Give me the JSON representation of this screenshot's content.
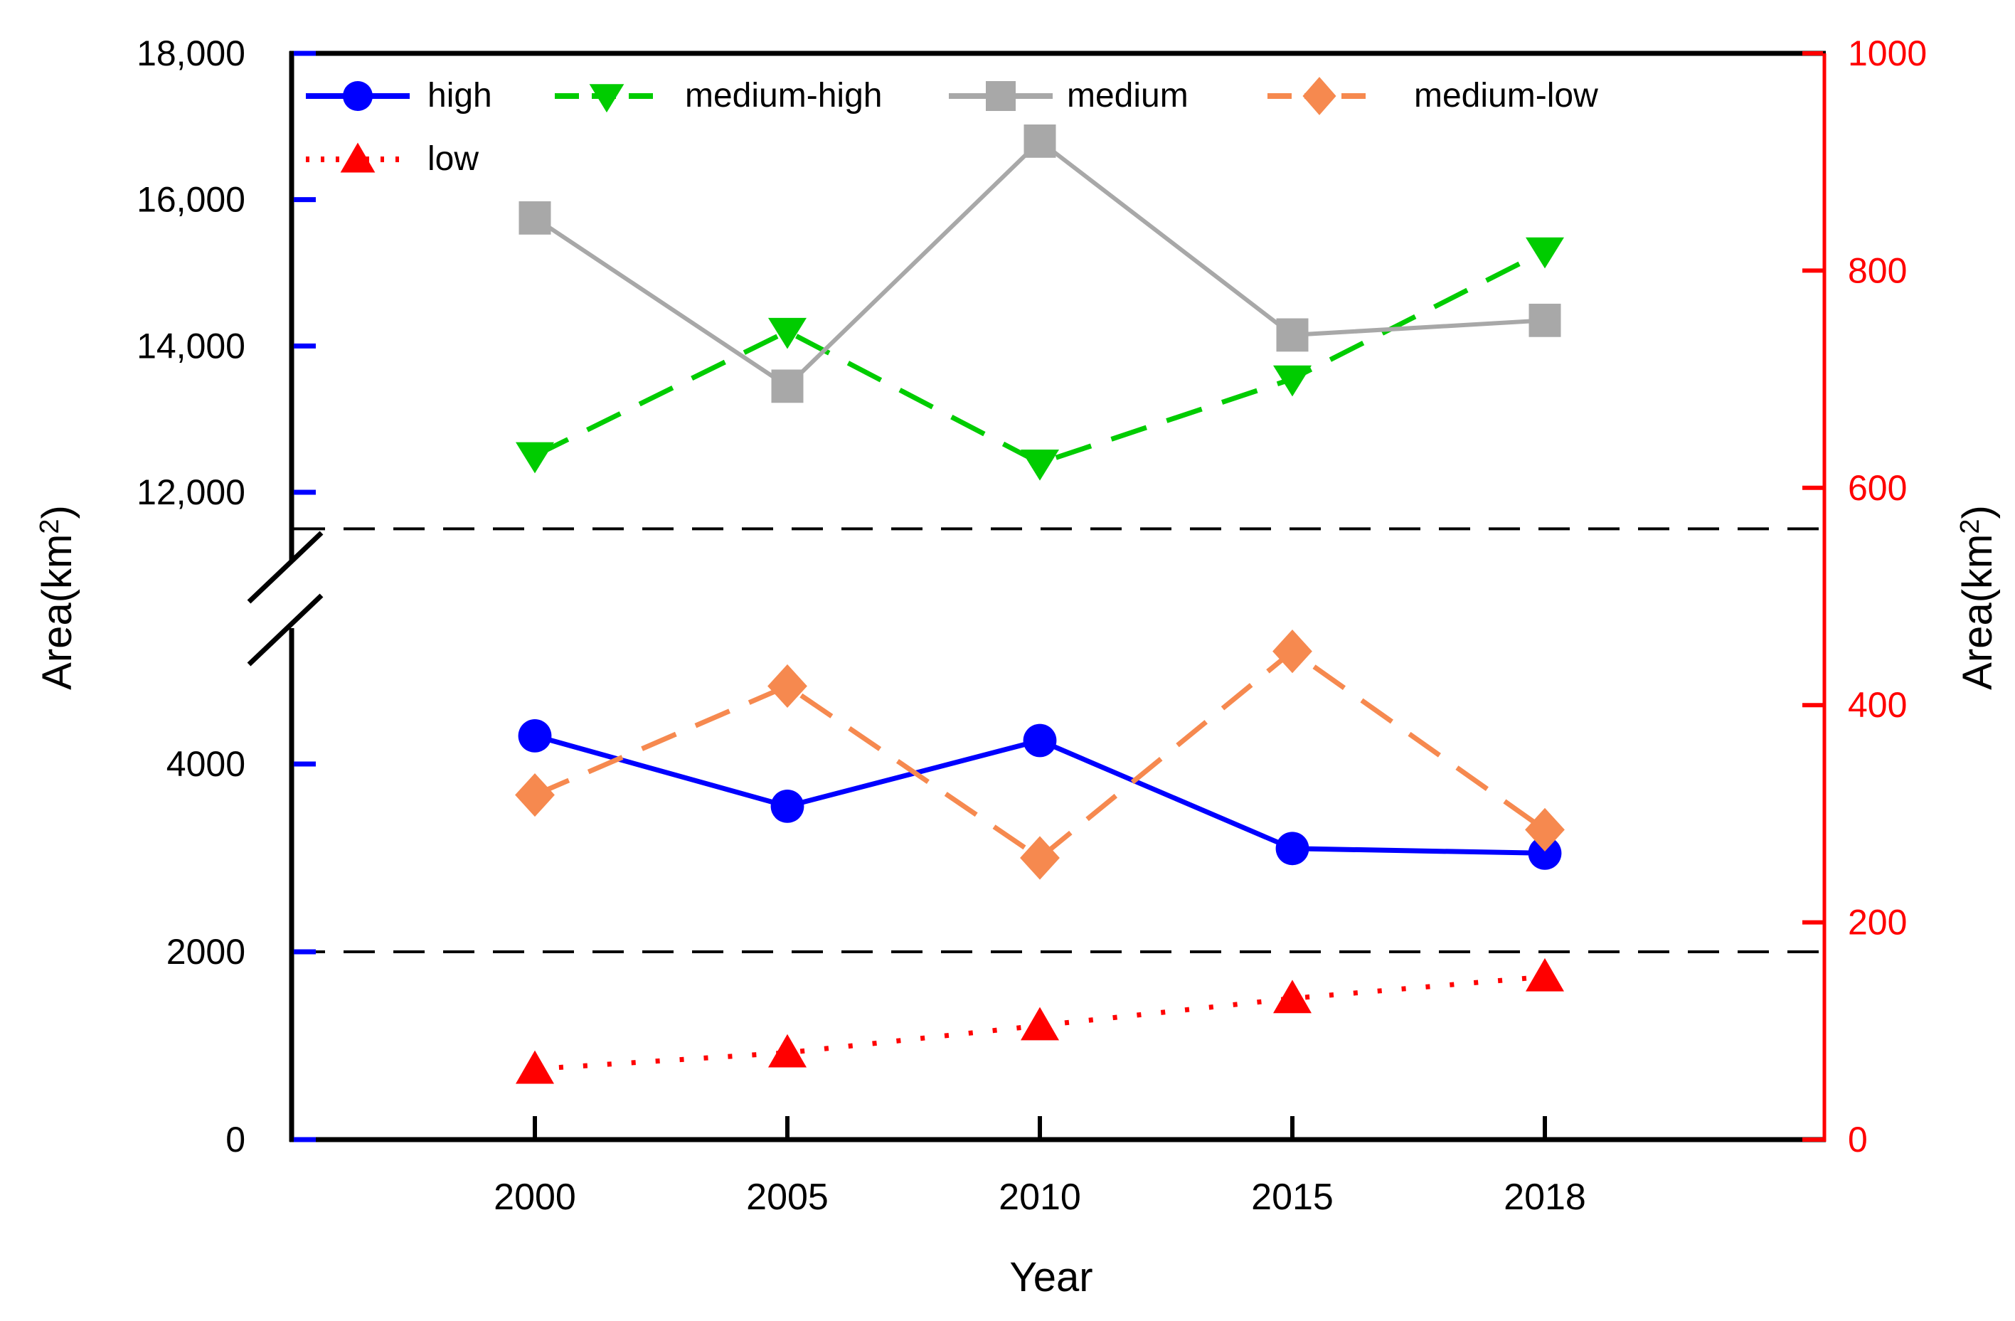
{
  "figure": {
    "background": "#FFFFFF"
  },
  "chart_data": {
    "type": "line",
    "title": "",
    "xlabel": "Year",
    "ylabel_left": "Area(km²)",
    "ylabel_right": "Area(km²)",
    "categories": [
      "2000",
      "2005",
      "2010",
      "2015",
      "2018"
    ],
    "grid": false,
    "legend_position": "top-left-inside",
    "left_axis": {
      "axis_break": true,
      "tick_color": "#0000FF",
      "label_color": "#000000",
      "top_segment": {
        "range": [
          11050,
          18000
        ],
        "ticks": [
          {
            "value": 18000,
            "label": "18,000"
          },
          {
            "value": 16000,
            "label": "16,000"
          },
          {
            "value": 14000,
            "label": "14,000"
          },
          {
            "value": 12000,
            "label": "12,000"
          }
        ]
      },
      "bottom_segment": {
        "range": [
          0,
          5450
        ],
        "ticks": [
          {
            "value": 4000,
            "label": "4000"
          },
          {
            "value": 2000,
            "label": "2000"
          },
          {
            "value": 0,
            "label": "0"
          }
        ]
      }
    },
    "right_axis": {
      "range": [
        0,
        1000
      ],
      "color": "#FF0000",
      "ticks": [
        {
          "value": 1000,
          "label": "1000"
        },
        {
          "value": 800,
          "label": "800"
        },
        {
          "value": 600,
          "label": "600"
        },
        {
          "value": 400,
          "label": "400"
        },
        {
          "value": 200,
          "label": "200"
        },
        {
          "value": 0,
          "label": "0"
        }
      ]
    },
    "reference_lines": [
      {
        "axis": "left-top",
        "value": 11500,
        "style": "dashed",
        "color": "#000000"
      },
      {
        "axis": "left-bottom",
        "value": 2000,
        "style": "dashed",
        "color": "#000000"
      }
    ],
    "series": [
      {
        "name": "high",
        "color": "#0000FF",
        "marker": "circle",
        "line": "solid",
        "axis": "left-bottom",
        "values": [
          4300,
          3550,
          4250,
          3100,
          3050
        ]
      },
      {
        "name": "medium-high",
        "color": "#00CC00",
        "marker": "triangle-down",
        "line": "dashed",
        "axis": "left-top",
        "values": [
          12500,
          14200,
          12400,
          13550,
          15300
        ]
      },
      {
        "name": "medium",
        "color": "#A8A8A8",
        "marker": "square",
        "line": "solid",
        "axis": "left-top",
        "values": [
          15750,
          13450,
          16800,
          14150,
          14350
        ]
      },
      {
        "name": "medium-low",
        "color": "#F6894F",
        "marker": "diamond",
        "line": "dashed",
        "axis": "left-bottom",
        "values": [
          3670,
          4830,
          3000,
          5200,
          3300
        ]
      },
      {
        "name": "low",
        "color": "#FF0000",
        "marker": "triangle-up",
        "line": "dotted",
        "axis": "right",
        "values": [
          65,
          80,
          105,
          130,
          150
        ]
      }
    ]
  }
}
